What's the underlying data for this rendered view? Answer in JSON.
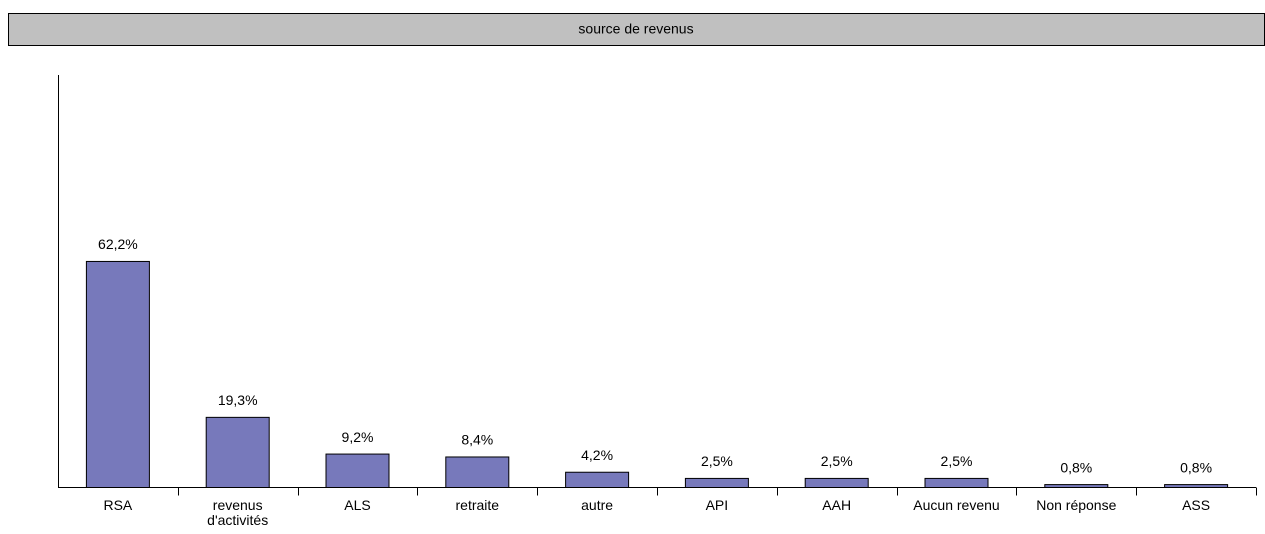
{
  "chart_data": {
    "type": "bar",
    "title": "source de revenus",
    "categories": [
      "RSA",
      "revenus d'activités",
      "ALS",
      "retraite",
      "autre",
      "API",
      "AAH",
      "Aucun revenu",
      "Non réponse",
      "ASS"
    ],
    "values": [
      62.2,
      19.3,
      9.2,
      8.4,
      4.2,
      2.5,
      2.5,
      2.5,
      0.8,
      0.8
    ],
    "value_labels": [
      "62,2%",
      "19,3%",
      "9,2%",
      "8,4%",
      "4,2%",
      "2,5%",
      "2,5%",
      "2,5%",
      "0,8%",
      "0,8%"
    ],
    "color": "#7779bb",
    "ylim": [
      0,
      113.5
    ]
  }
}
